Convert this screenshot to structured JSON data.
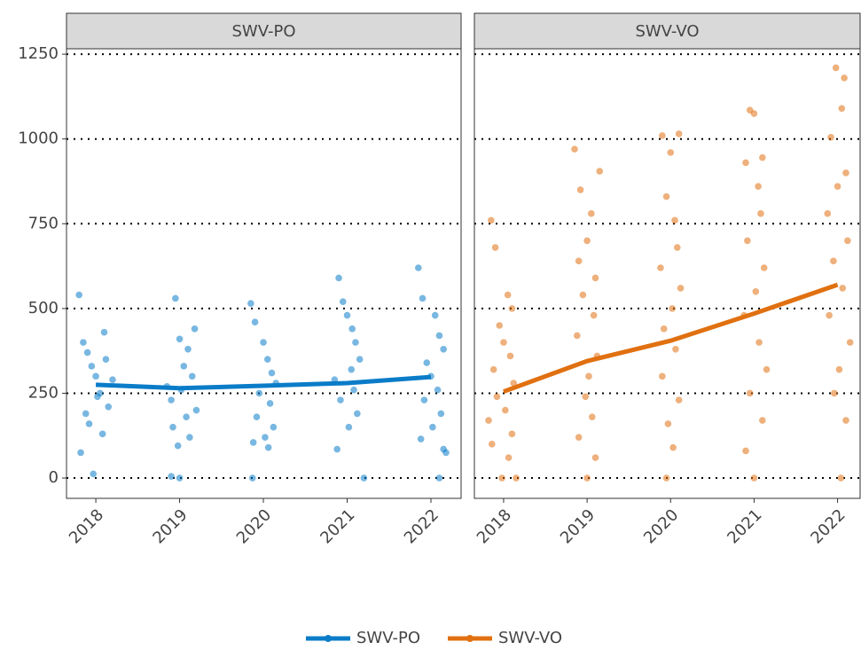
{
  "chart_data": [
    {
      "type": "scatter",
      "title": "SWV-PO",
      "xlim": [
        2017.65,
        2022.36
      ],
      "ylim": [
        -60,
        1266
      ],
      "xticks": [
        2018,
        2019,
        2020,
        2021,
        2022
      ],
      "yticks": [
        0,
        250,
        500,
        750,
        1000,
        1250
      ],
      "grid": true,
      "series": [
        {
          "name": "SWV-PO",
          "color": "#0a7cc8",
          "x": [
            2017.8,
            2017.85,
            2017.9,
            2017.95,
            2018.0,
            2018.05,
            2018.1,
            2018.15,
            2018.2,
            2017.88,
            2018.02,
            2018.12,
            2017.92,
            2017.82,
            2018.08,
            2017.97,
            2018.95,
            2019.0,
            2019.1,
            2019.05,
            2019.15,
            2018.85,
            2018.9,
            2019.2,
            2019.08,
            2018.92,
            2019.12,
            2018.98,
            2019.02,
            2018.9,
            2019.0,
            2019.18,
            2019.85,
            2019.9,
            2020.0,
            2020.05,
            2020.1,
            2020.15,
            2019.95,
            2020.08,
            2019.92,
            2020.12,
            2020.02,
            2019.88,
            2020.06,
            2019.87,
            2020.9,
            2020.95,
            2021.0,
            2021.1,
            2021.15,
            2021.05,
            2020.85,
            2021.08,
            2020.92,
            2021.12,
            2021.02,
            2020.88,
            2021.2,
            2021.06,
            2021.85,
            2021.9,
            2022.05,
            2022.1,
            2022.15,
            2021.95,
            2022.0,
            2022.08,
            2021.92,
            2022.12,
            2022.02,
            2021.88,
            2022.15,
            2022.1,
            2022.18
          ],
          "values": [
            540,
            400,
            370,
            330,
            300,
            250,
            430,
            210,
            290,
            190,
            240,
            350,
            160,
            75,
            130,
            12,
            530,
            410,
            380,
            330,
            300,
            270,
            230,
            200,
            180,
            150,
            120,
            95,
            260,
            5,
            0,
            440,
            515,
            460,
            400,
            350,
            310,
            280,
            250,
            220,
            180,
            150,
            120,
            105,
            90,
            0,
            590,
            520,
            480,
            400,
            350,
            320,
            290,
            260,
            230,
            190,
            150,
            85,
            0,
            440,
            620,
            530,
            480,
            420,
            380,
            340,
            300,
            260,
            230,
            190,
            150,
            115,
            85,
            0,
            75
          ],
          "trend_x": [
            2018,
            2019,
            2020,
            2021,
            2022
          ],
          "trend_values": [
            275,
            265,
            272,
            280,
            298
          ]
        }
      ]
    },
    {
      "type": "scatter",
      "title": "SWV-VO",
      "xlim": [
        2017.65,
        2022.27
      ],
      "ylim": [
        -60,
        1266
      ],
      "xticks": [
        2018,
        2019,
        2020,
        2021,
        2022
      ],
      "yticks": [
        0,
        250,
        500,
        750,
        1000,
        1250
      ],
      "grid": true,
      "series": [
        {
          "name": "SWV-VO",
          "color": "#e07010",
          "x": [
            2017.85,
            2017.9,
            2018.05,
            2018.1,
            2017.95,
            2018.0,
            2018.08,
            2017.88,
            2018.12,
            2017.92,
            2018.02,
            2017.82,
            2018.1,
            2017.86,
            2018.06,
            2017.98,
            2018.15,
            2018.85,
            2019.15,
            2018.92,
            2019.05,
            2019.0,
            2018.9,
            2019.1,
            2018.95,
            2019.08,
            2018.88,
            2019.12,
            2019.02,
            2018.98,
            2019.06,
            2018.9,
            2019.1,
            2019.0,
            2019.9,
            2020.1,
            2020.0,
            2019.95,
            2020.05,
            2020.08,
            2019.88,
            2020.12,
            2020.02,
            2019.92,
            2020.06,
            2019.9,
            2020.1,
            2019.97,
            2020.03,
            2019.95,
            2020.95,
            2021.0,
            2021.1,
            2020.9,
            2021.05,
            2021.08,
            2020.92,
            2021.12,
            2021.02,
            2020.88,
            2021.06,
            2021.15,
            2020.95,
            2021.1,
            2020.9,
            2021.0,
            2021.98,
            2022.08,
            2022.05,
            2021.92,
            2022.1,
            2022.0,
            2021.88,
            2022.12,
            2021.95,
            2022.06,
            2021.9,
            2022.15,
            2022.02,
            2021.96,
            2022.1,
            2022.04
          ],
          "values": [
            760,
            680,
            540,
            500,
            450,
            400,
            360,
            320,
            280,
            240,
            200,
            170,
            130,
            100,
            60,
            0,
            0,
            970,
            905,
            850,
            780,
            700,
            640,
            590,
            540,
            480,
            420,
            360,
            300,
            240,
            180,
            120,
            60,
            0,
            1010,
            1015,
            960,
            830,
            760,
            680,
            620,
            560,
            500,
            440,
            380,
            300,
            230,
            160,
            90,
            0,
            1085,
            1075,
            945,
            930,
            860,
            780,
            700,
            620,
            550,
            480,
            400,
            320,
            250,
            170,
            80,
            0,
            1210,
            1180,
            1090,
            1005,
            900,
            860,
            780,
            700,
            640,
            560,
            480,
            400,
            320,
            250,
            170,
            0
          ],
          "trend_x": [
            2018,
            2019,
            2020,
            2021,
            2022
          ],
          "trend_values": [
            255,
            345,
            405,
            485,
            570
          ]
        }
      ]
    }
  ]
}
